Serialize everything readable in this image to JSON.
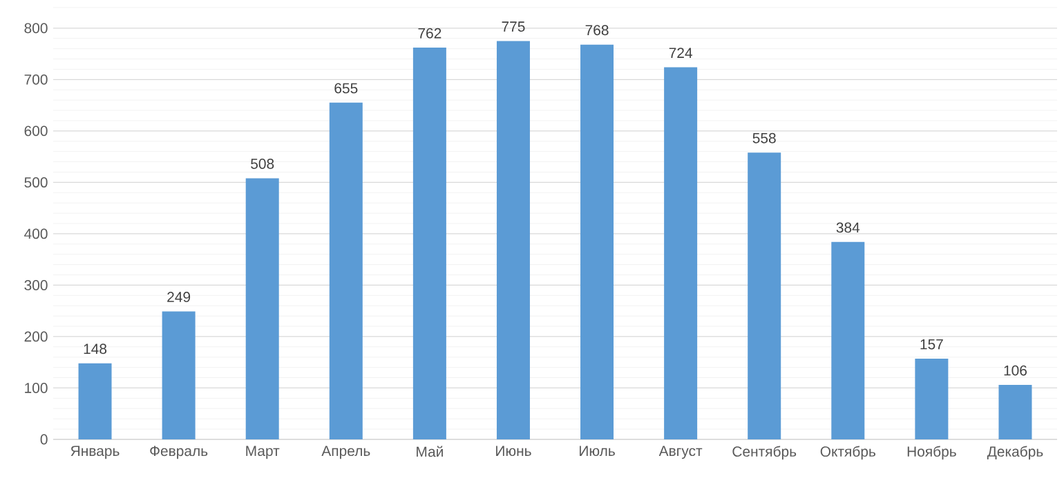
{
  "chart_data": {
    "type": "bar",
    "categories": [
      "Январь",
      "Февраль",
      "Март",
      "Апрель",
      "Май",
      "Июнь",
      "Июль",
      "Август",
      "Сентябрь",
      "Октябрь",
      "Ноябрь",
      "Декабрь"
    ],
    "values": [
      148,
      249,
      508,
      655,
      762,
      775,
      768,
      724,
      558,
      384,
      157,
      106
    ],
    "color": "#5b9bd5",
    "ylim": [
      0,
      840
    ],
    "yticks": [
      0,
      100,
      200,
      300,
      400,
      500,
      600,
      700,
      800
    ],
    "grid": "y",
    "data_labels": true
  }
}
